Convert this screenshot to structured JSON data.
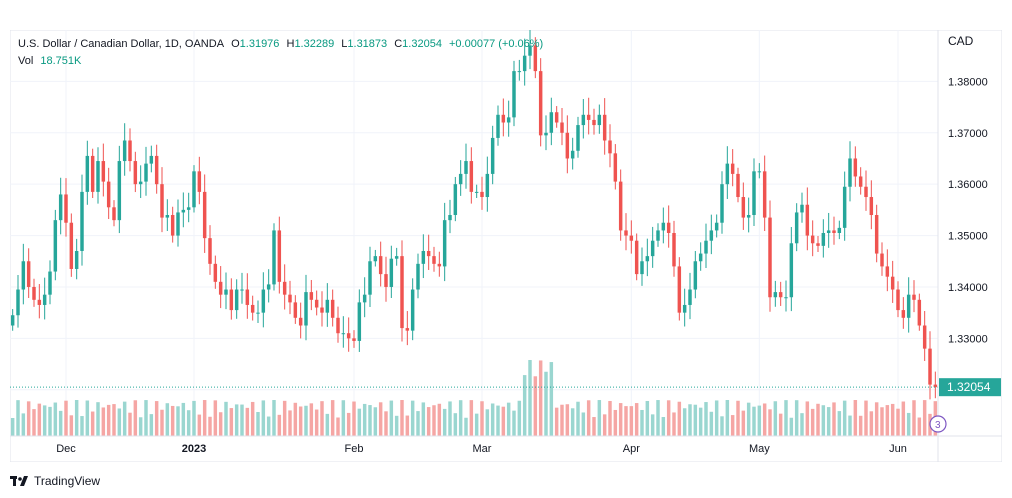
{
  "legend": {
    "symbol": "U.S. Dollar / Canadian Dollar, 1D, OANDA",
    "open_label": "O",
    "open": "1.31976",
    "high_label": "H",
    "high": "1.32289",
    "low_label": "L",
    "low": "1.31873",
    "close_label": "C",
    "close": "1.32054",
    "change": "+0.00077 (+0.06%)",
    "vol_label": "Vol",
    "vol": "18.751K"
  },
  "price_tag": "1.32054",
  "footer": {
    "brand": "TradingView",
    "logo_icon": "tradingview-logo-icon"
  },
  "settings_icon": "chart-settings-icon",
  "colors": {
    "up": "#26a69a",
    "down": "#ef5350",
    "vol_up": "#9ad6d0",
    "vol_down": "#f5a6a4",
    "grid": "#f0f3fa"
  },
  "chart_data": {
    "type": "candlestick",
    "title": "U.S. Dollar / Canadian Dollar, 1D, OANDA",
    "currency": "CAD",
    "y_ticks": [
      1.32,
      1.33,
      1.34,
      1.35,
      1.36,
      1.37,
      1.38
    ],
    "ylim": [
      1.311,
      1.39
    ],
    "x_labels": [
      "Dec",
      "2023",
      "Feb",
      "Mar",
      "Apr",
      "May",
      "Jun"
    ],
    "x_label_days": [
      10,
      34,
      64,
      88,
      116,
      140,
      166
    ],
    "grid": true,
    "series": [
      {
        "name": "close",
        "values": [
          1.3345,
          1.3395,
          1.345,
          1.34,
          1.3375,
          1.3365,
          1.3385,
          1.343,
          1.353,
          1.358,
          1.3525,
          1.3435,
          1.347,
          1.3585,
          1.3655,
          1.3585,
          1.3645,
          1.3605,
          1.3555,
          1.353,
          1.3645,
          1.3685,
          1.3645,
          1.36,
          1.3605,
          1.364,
          1.3655,
          1.36,
          1.3535,
          1.354,
          1.35,
          1.3545,
          1.355,
          1.3555,
          1.3625,
          1.3585,
          1.3495,
          1.3445,
          1.341,
          1.3385,
          1.3395,
          1.3355,
          1.3395,
          1.3395,
          1.3365,
          1.335,
          1.335,
          1.3395,
          1.3405,
          1.351,
          1.341,
          1.3385,
          1.337,
          1.334,
          1.3325,
          1.339,
          1.3375,
          1.336,
          1.335,
          1.3375,
          1.334,
          1.331,
          1.331,
          1.33,
          1.3295,
          1.337,
          1.3385,
          1.345,
          1.346,
          1.3425,
          1.34,
          1.3455,
          1.346,
          1.332,
          1.3315,
          1.3395,
          1.3445,
          1.347,
          1.346,
          1.3445,
          1.344,
          1.353,
          1.354,
          1.36,
          1.362,
          1.3645,
          1.3585,
          1.3585,
          1.3575,
          1.362,
          1.369,
          1.3735,
          1.372,
          1.373,
          1.382,
          1.382,
          1.385,
          1.387,
          1.382,
          1.3695,
          1.37,
          1.374,
          1.372,
          1.37,
          1.365,
          1.3665,
          1.3715,
          1.3735,
          1.3725,
          1.3715,
          1.3735,
          1.3685,
          1.366,
          1.3605,
          1.351,
          1.35,
          1.349,
          1.3425,
          1.345,
          1.346,
          1.349,
          1.351,
          1.3525,
          1.3505,
          1.344,
          1.335,
          1.3365,
          1.3395,
          1.345,
          1.3465,
          1.349,
          1.351,
          1.3525,
          1.36,
          1.364,
          1.362,
          1.3575,
          1.3535,
          1.354,
          1.3625,
          1.3625,
          1.3535,
          1.338,
          1.339,
          1.338,
          1.338,
          1.3485,
          1.3545,
          1.356,
          1.35,
          1.3485,
          1.348,
          1.3505,
          1.351,
          1.3505,
          1.3515,
          1.3595,
          1.365,
          1.3615,
          1.3595,
          1.3575,
          1.354,
          1.3465,
          1.344,
          1.342,
          1.3395,
          1.3355,
          1.334,
          1.3385,
          1.3375,
          1.3325,
          1.328,
          1.321,
          1.3205
        ]
      }
    ]
  }
}
